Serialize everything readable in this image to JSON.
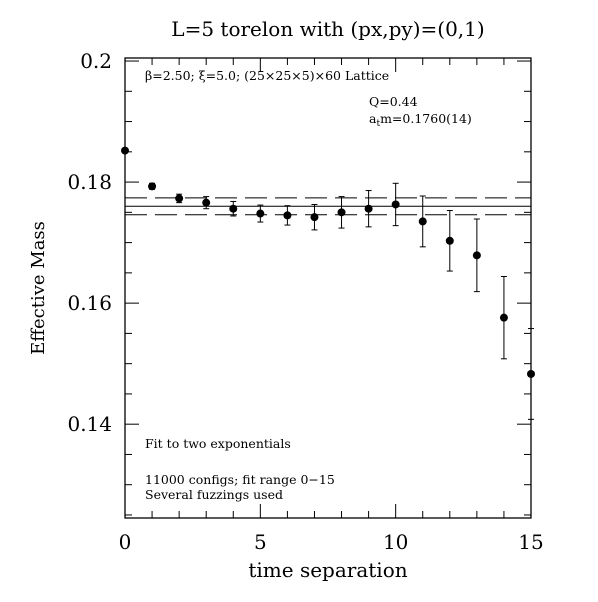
{
  "chart_data": {
    "type": "scatter",
    "title": "L=5 torelon with (px,py)=(0,1)",
    "xlabel": "time separation",
    "ylabel": "Effective Mass",
    "xlim": [
      0,
      15
    ],
    "ylim": [
      0.1245,
      0.2005
    ],
    "x_ticks": [
      0,
      5,
      10,
      15
    ],
    "x_tick_labels": [
      "0",
      "5",
      "10",
      "15"
    ],
    "y_ticks": [
      0.14,
      0.16,
      0.18,
      0.2
    ],
    "y_tick_labels": [
      "0.14",
      "0.16",
      "0.18",
      "0.2"
    ],
    "x_minor_step": 1,
    "y_minor_step": 0.005,
    "grid": false,
    "annotations": {
      "lattice": "β=2.50; ξ=5.0; (25×25×5)×60 Lattice",
      "q": "Q=0.44",
      "mass_sym": "a",
      "mass_sub": "t",
      "mass_val": "m=0.1760(14)",
      "fit_type": "Fit to two exponentials",
      "configs": "11000 configs; fit range 0−15",
      "fuzzing": "Several fuzzings used"
    },
    "fit": {
      "central": 0.176,
      "error": 0.0014,
      "x_range": [
        0,
        15
      ]
    },
    "series": [
      {
        "x": [
          0,
          1,
          2,
          3,
          4,
          5,
          6,
          7,
          8,
          9,
          10,
          11,
          12,
          13,
          14,
          15
        ],
        "y": [
          0.1852,
          0.1793,
          0.1773,
          0.1766,
          0.1756,
          0.1748,
          0.1745,
          0.1742,
          0.175,
          0.1756,
          0.1763,
          0.1735,
          0.1703,
          0.1679,
          0.1576,
          0.1483
        ],
        "err": [
          0.0003,
          0.0005,
          0.0007,
          0.001,
          0.0012,
          0.0014,
          0.0016,
          0.0021,
          0.0026,
          0.003,
          0.0035,
          0.0042,
          0.005,
          0.006,
          0.0068,
          0.0075
        ]
      }
    ]
  }
}
